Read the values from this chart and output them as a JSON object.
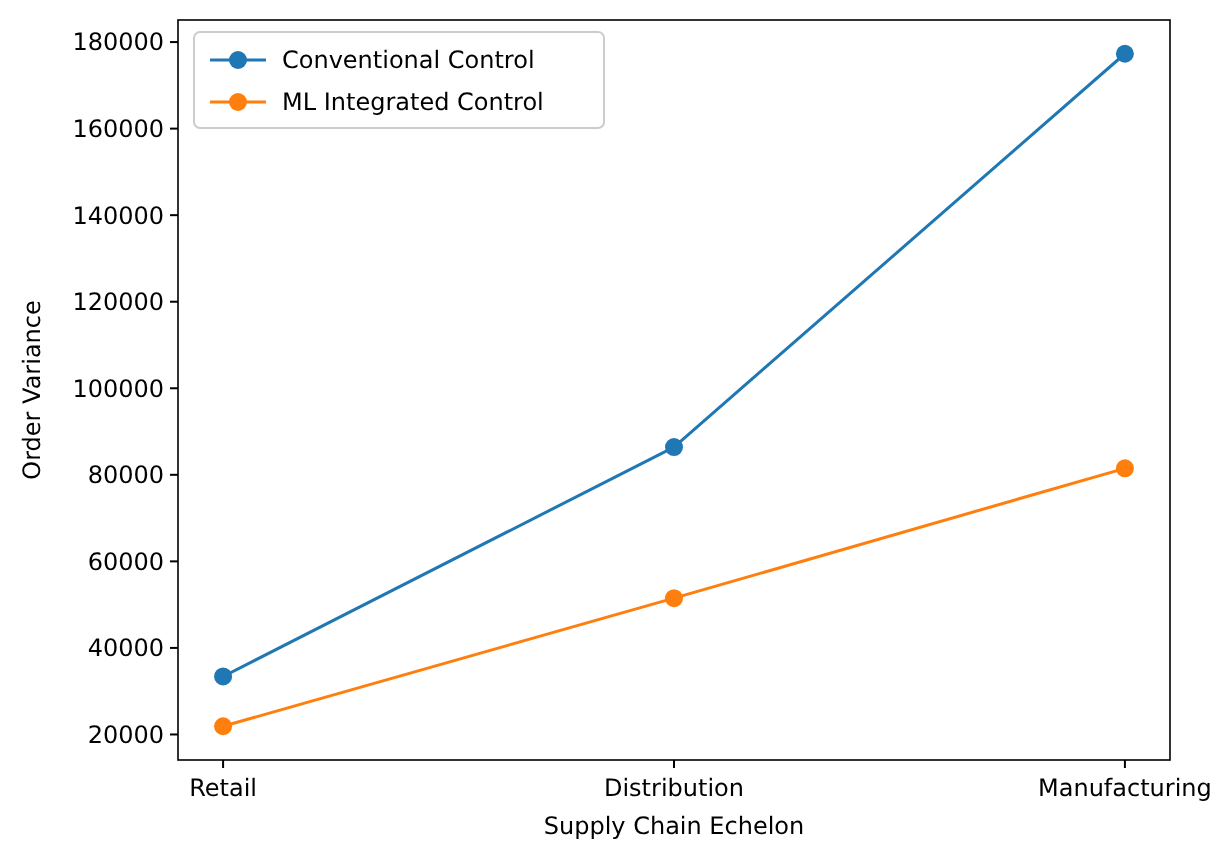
{
  "chart_data": {
    "type": "line",
    "xlabel": "Supply Chain Echelon",
    "ylabel": "Order Variance",
    "categories": [
      "Retail",
      "Distribution",
      "Manufacturing"
    ],
    "series": [
      {
        "name": "Conventional Control",
        "color": "#1f77b4",
        "values": [
          33400,
          86400,
          177300
        ]
      },
      {
        "name": "ML Integrated Control",
        "color": "#ff7f0e",
        "values": [
          21900,
          51500,
          81500
        ]
      }
    ],
    "ylim": [
      14100,
      185100
    ],
    "yticks": [
      20000,
      40000,
      60000,
      80000,
      100000,
      120000,
      140000,
      160000,
      180000
    ],
    "grid": false,
    "legend": "top left",
    "marker": "circle",
    "line_style": "solid"
  }
}
